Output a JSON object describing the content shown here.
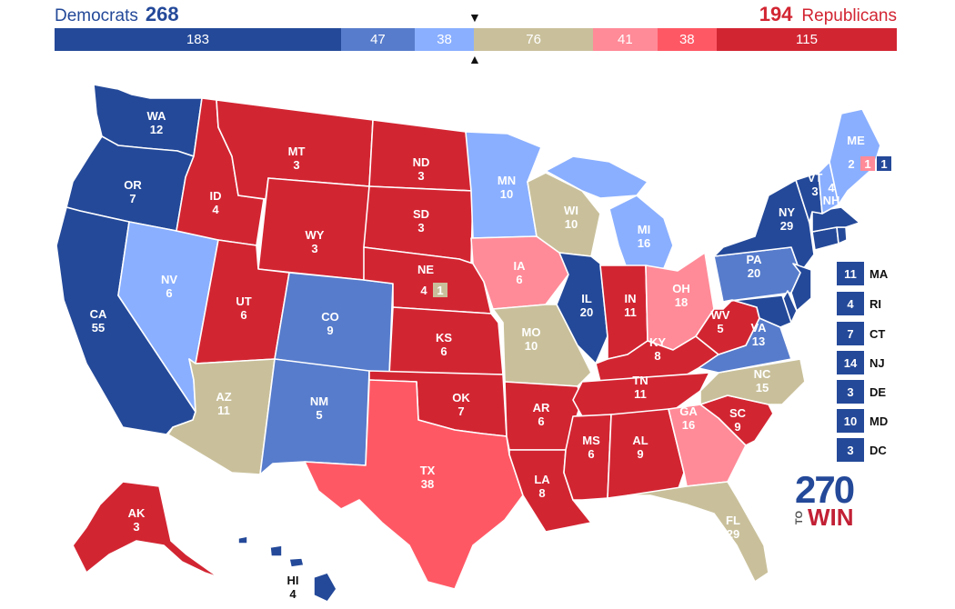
{
  "header": {
    "dem_label": "Democrats",
    "dem_total": "268",
    "rep_total": "194",
    "rep_label": "Republicans"
  },
  "bar": {
    "max": 538,
    "segments": [
      {
        "key": "safe_d",
        "value": 183,
        "label": "183",
        "color": "#244999"
      },
      {
        "key": "likely_d",
        "value": 47,
        "label": "47",
        "color": "#577ccc"
      },
      {
        "key": "lean_d",
        "value": 38,
        "label": "38",
        "color": "#8aafff"
      },
      {
        "key": "tossup",
        "value": 76,
        "label": "76",
        "color": "#c9c09b"
      },
      {
        "key": "lean_r",
        "value": 41,
        "label": "41",
        "color": "#ff8b98"
      },
      {
        "key": "likely_r",
        "value": 38,
        "label": "38",
        "color": "#ff5865"
      },
      {
        "key": "safe_r",
        "value": 115,
        "label": "115",
        "color": "#d22532"
      }
    ],
    "marker_top": "▼",
    "marker_bottom": "▲"
  },
  "colors": {
    "safe_d": "#244999",
    "likely_d": "#577ccc",
    "lean_d": "#8aafff",
    "tossup": "#c9c09b",
    "lean_r": "#ff8b98",
    "likely_r": "#ff5865",
    "safe_r": "#d22532"
  },
  "states": [
    {
      "code": "WA",
      "ev": "12",
      "rating": "safe_d"
    },
    {
      "code": "OR",
      "ev": "7",
      "rating": "safe_d"
    },
    {
      "code": "CA",
      "ev": "55",
      "rating": "safe_d"
    },
    {
      "code": "NV",
      "ev": "6",
      "rating": "lean_d"
    },
    {
      "code": "ID",
      "ev": "4",
      "rating": "safe_r"
    },
    {
      "code": "MT",
      "ev": "3",
      "rating": "safe_r"
    },
    {
      "code": "WY",
      "ev": "3",
      "rating": "safe_r"
    },
    {
      "code": "UT",
      "ev": "6",
      "rating": "safe_r"
    },
    {
      "code": "AZ",
      "ev": "11",
      "rating": "tossup"
    },
    {
      "code": "CO",
      "ev": "9",
      "rating": "likely_d"
    },
    {
      "code": "NM",
      "ev": "5",
      "rating": "likely_d"
    },
    {
      "code": "ND",
      "ev": "3",
      "rating": "safe_r"
    },
    {
      "code": "SD",
      "ev": "3",
      "rating": "safe_r"
    },
    {
      "code": "NE",
      "ev": "4",
      "rating": "safe_r"
    },
    {
      "code": "KS",
      "ev": "6",
      "rating": "safe_r"
    },
    {
      "code": "OK",
      "ev": "7",
      "rating": "safe_r"
    },
    {
      "code": "TX",
      "ev": "38",
      "rating": "likely_r"
    },
    {
      "code": "MN",
      "ev": "10",
      "rating": "lean_d"
    },
    {
      "code": "IA",
      "ev": "6",
      "rating": "lean_r"
    },
    {
      "code": "MO",
      "ev": "10",
      "rating": "tossup"
    },
    {
      "code": "AR",
      "ev": "6",
      "rating": "safe_r"
    },
    {
      "code": "LA",
      "ev": "8",
      "rating": "safe_r"
    },
    {
      "code": "WI",
      "ev": "10",
      "rating": "tossup"
    },
    {
      "code": "IL",
      "ev": "20",
      "rating": "safe_d"
    },
    {
      "code": "MI",
      "ev": "16",
      "rating": "lean_d"
    },
    {
      "code": "IN",
      "ev": "11",
      "rating": "safe_r"
    },
    {
      "code": "OH",
      "ev": "18",
      "rating": "lean_r"
    },
    {
      "code": "KY",
      "ev": "8",
      "rating": "safe_r"
    },
    {
      "code": "TN",
      "ev": "11",
      "rating": "safe_r"
    },
    {
      "code": "MS",
      "ev": "6",
      "rating": "safe_r"
    },
    {
      "code": "AL",
      "ev": "9",
      "rating": "safe_r"
    },
    {
      "code": "GA",
      "ev": "16",
      "rating": "lean_r"
    },
    {
      "code": "FL",
      "ev": "29",
      "rating": "tossup"
    },
    {
      "code": "SC",
      "ev": "9",
      "rating": "safe_r"
    },
    {
      "code": "NC",
      "ev": "15",
      "rating": "tossup"
    },
    {
      "code": "VA",
      "ev": "13",
      "rating": "likely_d"
    },
    {
      "code": "WV",
      "ev": "5",
      "rating": "safe_r"
    },
    {
      "code": "PA",
      "ev": "20",
      "rating": "likely_d"
    },
    {
      "code": "NY",
      "ev": "29",
      "rating": "safe_d"
    },
    {
      "code": "VT",
      "ev": "3",
      "rating": "safe_d"
    },
    {
      "code": "NH",
      "ev": "4",
      "rating": "lean_d"
    },
    {
      "code": "ME",
      "ev": "",
      "rating": "lean_d"
    },
    {
      "code": "AK",
      "ev": "3",
      "rating": "safe_r"
    },
    {
      "code": "HI",
      "ev": "4",
      "rating": "safe_d"
    },
    {
      "code": "MA",
      "ev": "11",
      "rating": "safe_d"
    },
    {
      "code": "RI",
      "ev": "4",
      "rating": "safe_d"
    },
    {
      "code": "CT",
      "ev": "7",
      "rating": "safe_d"
    },
    {
      "code": "NJ",
      "ev": "14",
      "rating": "safe_d"
    },
    {
      "code": "DE",
      "ev": "3",
      "rating": "safe_d"
    },
    {
      "code": "MD",
      "ev": "10",
      "rating": "safe_d"
    },
    {
      "code": "DC",
      "ev": "3",
      "rating": "safe_d"
    }
  ],
  "districts": [
    {
      "id": "me-total",
      "value": "2",
      "rating": "lean_d"
    },
    {
      "id": "me-d2",
      "value": "1",
      "rating": "lean_r"
    },
    {
      "id": "me-d1",
      "value": "1",
      "rating": "safe_d"
    },
    {
      "id": "ne-total",
      "value": "4",
      "rating": "safe_r"
    },
    {
      "id": "ne-d2",
      "value": "1",
      "rating": "tossup"
    }
  ],
  "logo": {
    "number": "270",
    "to": "TO",
    "win": "WIN"
  }
}
